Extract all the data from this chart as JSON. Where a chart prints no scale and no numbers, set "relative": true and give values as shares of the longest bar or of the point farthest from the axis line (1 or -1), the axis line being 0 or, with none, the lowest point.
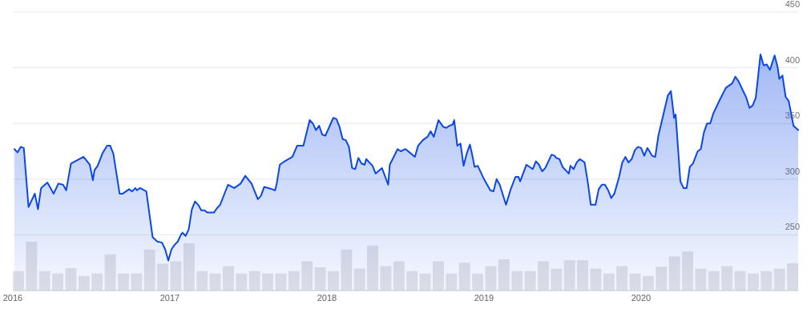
{
  "chart_data": [
    {
      "type": "area",
      "xlim": [
        2016,
        2021
      ],
      "ylim": [
        200,
        450
      ],
      "xticks": [
        2016,
        2017,
        2018,
        2019,
        2020
      ],
      "yticks": [
        250,
        300,
        350,
        400,
        450
      ],
      "grid": "y",
      "series": [
        {
          "color": "#0b47e6",
          "x": [
            2016.01,
            2016.03,
            2016.05,
            2016.07,
            2016.1,
            2016.14,
            2016.16,
            2016.18,
            2016.22,
            2016.26,
            2016.29,
            2016.32,
            2016.34,
            2016.37,
            2016.41,
            2016.45,
            2016.49,
            2016.51,
            2016.52,
            2016.54,
            2016.57,
            2016.6,
            2016.62,
            2016.64,
            2016.68,
            2016.7,
            2016.74,
            2016.76,
            2016.78,
            2016.79,
            2016.81,
            2016.85,
            2016.89,
            2016.92,
            2016.95,
            2016.97,
            2016.99,
            2017.01,
            2017.03,
            2017.05,
            2017.07,
            2017.08,
            2017.1,
            2017.12,
            2017.14,
            2017.16,
            2017.18,
            2017.2,
            2017.22,
            2017.24,
            2017.26,
            2017.28,
            2017.3,
            2017.32,
            2017.37,
            2017.41,
            2017.45,
            2017.48,
            2017.52,
            2017.56,
            2017.58,
            2017.6,
            2017.65,
            2017.67,
            2017.68,
            2017.7,
            2017.73,
            2017.78,
            2017.81,
            2017.85,
            2017.89,
            2017.91,
            2017.93,
            2017.95,
            2017.97,
            2017.99,
            2018.04,
            2018.06,
            2018.08,
            2018.1,
            2018.12,
            2018.14,
            2018.16,
            2018.18,
            2018.2,
            2018.22,
            2018.24,
            2018.25,
            2018.29,
            2018.31,
            2018.35,
            2018.39,
            2018.4,
            2018.45,
            2018.47,
            2018.5,
            2018.56,
            2018.58,
            2018.61,
            2018.64,
            2018.66,
            2018.68,
            2018.71,
            2018.74,
            2018.76,
            2018.78,
            2018.8,
            2018.81,
            2018.83,
            2018.85,
            2018.87,
            2018.89,
            2018.91,
            2018.92,
            2018.94,
            2018.96,
            2019.0,
            2019.04,
            2019.06,
            2019.08,
            2019.1,
            2019.14,
            2019.17,
            2019.2,
            2019.22,
            2019.23,
            2019.27,
            2019.31,
            2019.33,
            2019.35,
            2019.37,
            2019.39,
            2019.43,
            2019.45,
            2019.46,
            2019.48,
            2019.5,
            2019.54,
            2019.55,
            2019.57,
            2019.59,
            2019.61,
            2019.64,
            2019.66,
            2019.68,
            2019.71,
            2019.73,
            2019.75,
            2019.77,
            2019.79,
            2019.81,
            2019.83,
            2019.86,
            2019.88,
            2019.9,
            2019.92,
            2019.94,
            2019.96,
            2019.98,
            2020.0,
            2020.02,
            2020.04,
            2020.07,
            2020.09,
            2020.11,
            2020.17,
            2020.19,
            2020.21,
            2020.22,
            2020.25,
            2020.27,
            2020.29,
            2020.31,
            2020.33,
            2020.36,
            2020.38,
            2020.4,
            2020.42,
            2020.44,
            2020.46,
            2020.5,
            2020.54,
            2020.58,
            2020.6,
            2020.62,
            2020.66,
            2020.67,
            2020.69,
            2020.71,
            2020.73,
            2020.76,
            2020.78,
            2020.8,
            2020.82,
            2020.85,
            2020.87,
            2020.88,
            2020.9,
            2020.92,
            2020.94,
            2020.97,
            2021.0
          ],
          "values": [
            327,
            324,
            329,
            328,
            275,
            287,
            273,
            292,
            297,
            287,
            296,
            295,
            290,
            314,
            317,
            320,
            313,
            299,
            308,
            312,
            323,
            330,
            330,
            323,
            287,
            287,
            291,
            289,
            292,
            290,
            292,
            289,
            248,
            244,
            243,
            237,
            227,
            237,
            241,
            244,
            250,
            252,
            249,
            255,
            273,
            280,
            277,
            272,
            272,
            270,
            270,
            270,
            274,
            277,
            295,
            292,
            296,
            303,
            296,
            282,
            285,
            293,
            291,
            290,
            296,
            313,
            316,
            320,
            330,
            330,
            353,
            350,
            344,
            348,
            340,
            339,
            355,
            354,
            347,
            336,
            335,
            329,
            310,
            309,
            319,
            314,
            313,
            318,
            312,
            305,
            310,
            295,
            313,
            327,
            325,
            327,
            320,
            330,
            335,
            338,
            343,
            338,
            353,
            347,
            346,
            348,
            349,
            353,
            330,
            332,
            312,
            323,
            331,
            325,
            311,
            312,
            300,
            290,
            289,
            300,
            295,
            277,
            291,
            302,
            302,
            298,
            313,
            309,
            316,
            313,
            307,
            310,
            322,
            321,
            319,
            318,
            311,
            305,
            312,
            309,
            315,
            318,
            315,
            298,
            277,
            277,
            291,
            295,
            295,
            290,
            283,
            287,
            302,
            315,
            320,
            315,
            318,
            326,
            329,
            328,
            321,
            328,
            321,
            320,
            339,
            375,
            379,
            355,
            358,
            298,
            292,
            292,
            311,
            314,
            325,
            327,
            342,
            350,
            350,
            359,
            371,
            382,
            386,
            392,
            388,
            376,
            373,
            364,
            366,
            373,
            412,
            402,
            403,
            398,
            411,
            400,
            390,
            393,
            374,
            370,
            348,
            344
          ]
        }
      ]
    },
    {
      "type": "bar",
      "relative": true,
      "color": "#e3e3e6",
      "categories": [
        null,
        null,
        null,
        null,
        null,
        null,
        null,
        null,
        null,
        null,
        null,
        null,
        null,
        null,
        null,
        null,
        null,
        null,
        null,
        null,
        null,
        null,
        null,
        null,
        null,
        null,
        null,
        null,
        null,
        null,
        null,
        null,
        null,
        null,
        null,
        null,
        null,
        null,
        null,
        null,
        null,
        null,
        null,
        null,
        null,
        null,
        null,
        null,
        null,
        null,
        null,
        null,
        null,
        null,
        null,
        null,
        null,
        null,
        null,
        null
      ],
      "values": [
        0.4,
        1.0,
        0.4,
        0.35,
        0.46,
        0.3,
        0.35,
        0.74,
        0.35,
        0.35,
        0.84,
        0.55,
        0.6,
        0.97,
        0.4,
        0.35,
        0.5,
        0.35,
        0.4,
        0.35,
        0.35,
        0.4,
        0.6,
        0.48,
        0.4,
        0.84,
        0.45,
        0.92,
        0.5,
        0.6,
        0.4,
        0.35,
        0.6,
        0.35,
        0.57,
        0.35,
        0.5,
        0.64,
        0.4,
        0.4,
        0.6,
        0.45,
        0.62,
        0.62,
        0.45,
        0.35,
        0.5,
        0.35,
        0.3,
        0.49,
        0.7,
        0.8,
        0.45,
        0.4,
        0.5,
        0.4,
        0.35,
        0.4,
        0.45,
        0.56
      ]
    }
  ]
}
